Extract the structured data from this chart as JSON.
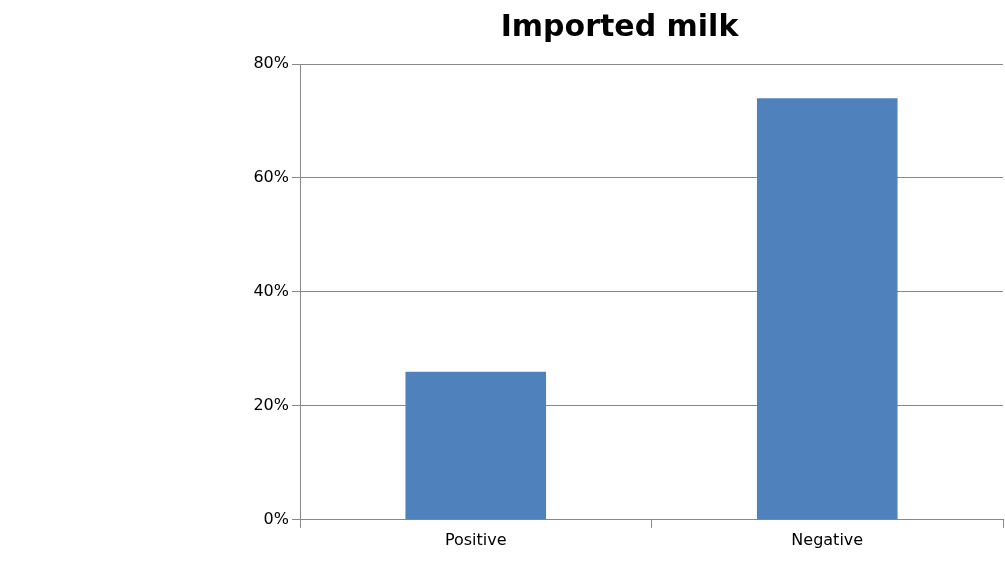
{
  "chart_data": {
    "type": "bar",
    "title": "Imported milk",
    "categories": [
      "Positive",
      "Negative"
    ],
    "values": [
      26,
      74
    ],
    "color": "#4f81bd",
    "ylim": [
      0,
      80
    ],
    "yticks": [
      {
        "value": 0,
        "label": "0%"
      },
      {
        "value": 20,
        "label": "20%"
      },
      {
        "value": 40,
        "label": "40%"
      },
      {
        "value": 60,
        "label": "60%"
      },
      {
        "value": 80,
        "label": "80%"
      }
    ],
    "grid": "y",
    "legend": false
  }
}
